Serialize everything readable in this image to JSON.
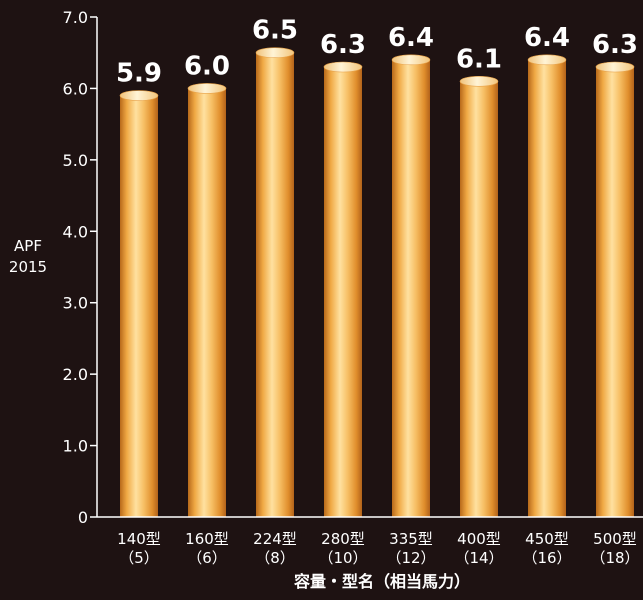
{
  "colors": {
    "background": "#1e1212",
    "bar_light": "#ffe3a6",
    "bar_mid": "#f2b14e",
    "bar_dark": "#c9731b",
    "text": "#ffffff",
    "axis": "#ffffff"
  },
  "chart_data": {
    "type": "bar",
    "title": "",
    "ylabel": "APF\n2015",
    "xlabel": "容量・型名（相当馬力）",
    "ylim": [
      0,
      7
    ],
    "yticks": [
      "0",
      "1.0",
      "2.0",
      "3.0",
      "4.0",
      "5.0",
      "6.0",
      "7.0"
    ],
    "grid": false,
    "categories": [
      {
        "model": "140型",
        "hp": "（5）"
      },
      {
        "model": "160型",
        "hp": "（6）"
      },
      {
        "model": "224型",
        "hp": "（8）"
      },
      {
        "model": "280型",
        "hp": "（10）"
      },
      {
        "model": "335型",
        "hp": "（12）"
      },
      {
        "model": "400型",
        "hp": "（14）"
      },
      {
        "model": "450型",
        "hp": "（16）"
      },
      {
        "model": "500型",
        "hp": "（18）"
      }
    ],
    "values": [
      5.9,
      6.0,
      6.5,
      6.3,
      6.4,
      6.1,
      6.4,
      6.3
    ],
    "value_labels": [
      "5.9",
      "6.0",
      "6.5",
      "6.3",
      "6.4",
      "6.1",
      "6.4",
      "6.3"
    ]
  }
}
